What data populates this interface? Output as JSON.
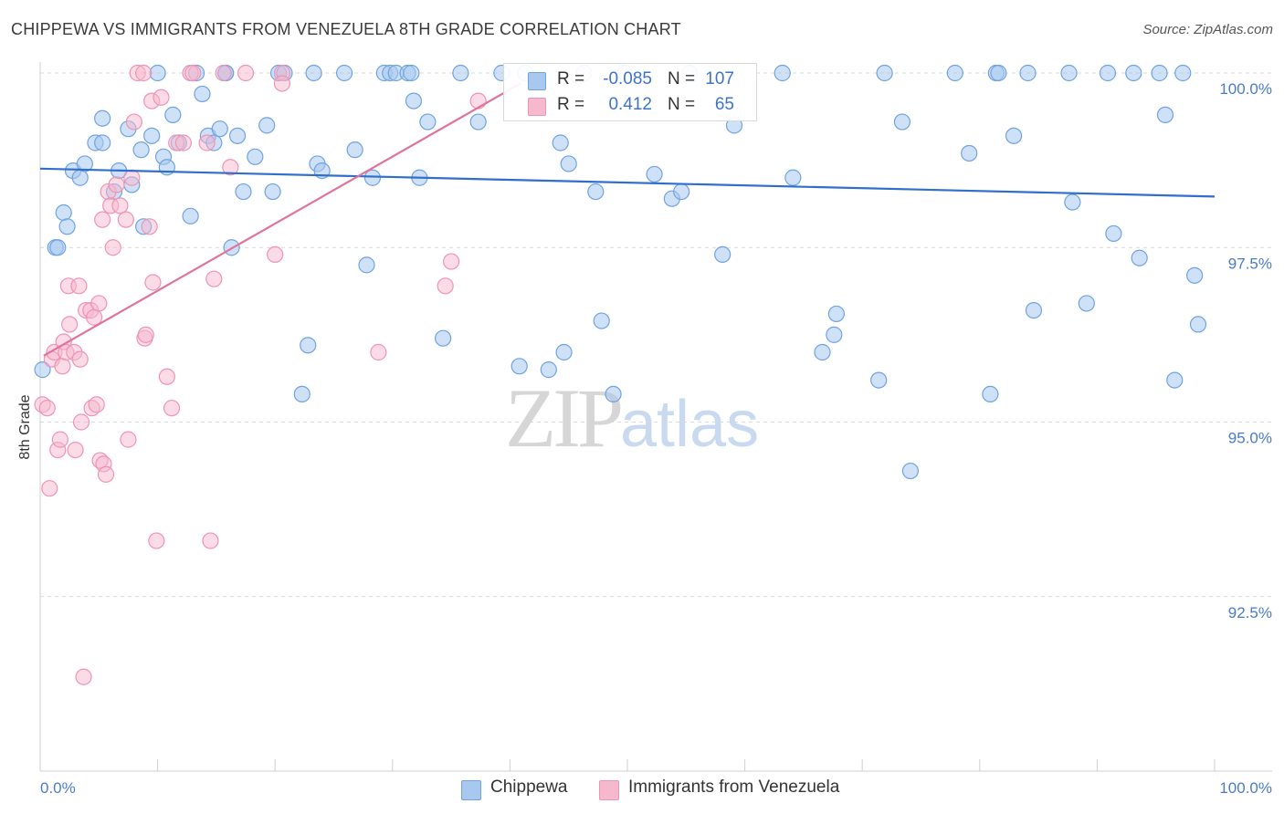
{
  "title": "CHIPPEWA VS IMMIGRANTS FROM VENEZUELA 8TH GRADE CORRELATION CHART",
  "source": "Source: ZipAtlas.com",
  "watermark": {
    "zip": "ZIP",
    "atlas": "atlas"
  },
  "colors": {
    "blue": "#6fa3e0",
    "blue_fill": "#a8c8f0",
    "blue_line": "#2f6fcb",
    "pink": "#ef94b3",
    "pink_fill": "#f6b8cd",
    "pink_line": "#e0739c",
    "tick": "#4a7bc8",
    "grid": "#d9d9d9"
  },
  "legend": {
    "rows": [
      {
        "r_label": "R =",
        "r_value": "-0.085",
        "n_label": "N =",
        "n_value": "107"
      },
      {
        "r_label": "R =",
        "r_value": "0.412",
        "n_label": "N =",
        "n_value": "65"
      }
    ]
  },
  "bottom_legend": {
    "series1": "Chippewa",
    "series2": "Immigrants from Venezuela"
  },
  "chart_data": {
    "type": "scatter",
    "title": "CHIPPEWA VS IMMIGRANTS FROM VENEZUELA 8TH GRADE CORRELATION CHART",
    "xlabel": "",
    "ylabel": "8th Grade",
    "xlim": [
      0,
      100
    ],
    "ylim": [
      90.2,
      100.5
    ],
    "x_tick_labels": [
      "0.0%",
      "100.0%"
    ],
    "y_ticks": [
      92.5,
      95.0,
      97.5,
      100.0
    ],
    "y_tick_labels": [
      "92.5%",
      "95.0%",
      "97.5%",
      "100.0%"
    ],
    "grid": true,
    "series": [
      {
        "name": "Chippewa",
        "r": -0.085,
        "n": 107,
        "trend": {
          "x": [
            0,
            100
          ],
          "y": [
            98.63,
            98.23
          ]
        },
        "points": [
          [
            0.2,
            95.75
          ],
          [
            1.3,
            97.5
          ],
          [
            1.5,
            97.5
          ],
          [
            2.0,
            98.0
          ],
          [
            2.3,
            97.8
          ],
          [
            2.8,
            98.6
          ],
          [
            3.4,
            98.5
          ],
          [
            3.8,
            98.7
          ],
          [
            4.7,
            99.0
          ],
          [
            5.3,
            99.0
          ],
          [
            5.3,
            99.35
          ],
          [
            6.3,
            98.3
          ],
          [
            6.7,
            98.6
          ],
          [
            7.5,
            99.2
          ],
          [
            7.8,
            98.4
          ],
          [
            8.6,
            98.9
          ],
          [
            8.8,
            97.8
          ],
          [
            9.5,
            99.1
          ],
          [
            10.0,
            100.0
          ],
          [
            10.5,
            98.8
          ],
          [
            10.8,
            98.65
          ],
          [
            11.3,
            99.4
          ],
          [
            11.8,
            99.0
          ],
          [
            12.8,
            97.95
          ],
          [
            13.3,
            100.0
          ],
          [
            13.8,
            99.7
          ],
          [
            14.3,
            99.1
          ],
          [
            14.8,
            99.0
          ],
          [
            15.3,
            99.2
          ],
          [
            15.8,
            100.0
          ],
          [
            15.8,
            100.0
          ],
          [
            16.3,
            97.5
          ],
          [
            16.8,
            99.1
          ],
          [
            17.3,
            98.3
          ],
          [
            18.3,
            98.8
          ],
          [
            19.3,
            99.25
          ],
          [
            19.8,
            98.3
          ],
          [
            20.3,
            100.0
          ],
          [
            20.8,
            100.0
          ],
          [
            22.3,
            95.4
          ],
          [
            22.8,
            96.1
          ],
          [
            23.3,
            100.0
          ],
          [
            23.6,
            98.7
          ],
          [
            24.0,
            98.6
          ],
          [
            25.9,
            100.0
          ],
          [
            26.8,
            98.9
          ],
          [
            27.8,
            97.25
          ],
          [
            28.3,
            98.5
          ],
          [
            29.3,
            100.0
          ],
          [
            29.8,
            100.0
          ],
          [
            30.3,
            100.0
          ],
          [
            31.3,
            100.0
          ],
          [
            31.6,
            100.0
          ],
          [
            31.8,
            99.6
          ],
          [
            32.3,
            98.5
          ],
          [
            33.0,
            99.3
          ],
          [
            34.3,
            96.2
          ],
          [
            35.8,
            100.0
          ],
          [
            37.3,
            99.3
          ],
          [
            39.3,
            100.0
          ],
          [
            40.8,
            95.8
          ],
          [
            41.3,
            100.0
          ],
          [
            43.3,
            95.75
          ],
          [
            44.3,
            99.0
          ],
          [
            44.6,
            96.0
          ],
          [
            45.0,
            98.7
          ],
          [
            46.3,
            100.0
          ],
          [
            47.3,
            98.3
          ],
          [
            47.8,
            96.45
          ],
          [
            48.8,
            95.4
          ],
          [
            49.8,
            100.0
          ],
          [
            52.3,
            98.55
          ],
          [
            53.8,
            98.2
          ],
          [
            54.6,
            98.3
          ],
          [
            55.3,
            100.0
          ],
          [
            58.1,
            97.4
          ],
          [
            59.1,
            99.25
          ],
          [
            63.2,
            100.0
          ],
          [
            64.1,
            98.5
          ],
          [
            66.6,
            96.0
          ],
          [
            67.6,
            96.25
          ],
          [
            67.8,
            96.55
          ],
          [
            71.4,
            95.6
          ],
          [
            71.9,
            100.0
          ],
          [
            73.4,
            99.3
          ],
          [
            74.1,
            94.3
          ],
          [
            77.9,
            100.0
          ],
          [
            79.1,
            98.85
          ],
          [
            80.9,
            95.4
          ],
          [
            81.4,
            100.0
          ],
          [
            81.6,
            100.0
          ],
          [
            82.9,
            99.1
          ],
          [
            84.1,
            100.0
          ],
          [
            84.6,
            96.6
          ],
          [
            87.6,
            100.0
          ],
          [
            87.9,
            98.15
          ],
          [
            89.1,
            96.7
          ],
          [
            90.9,
            100.0
          ],
          [
            91.4,
            97.7
          ],
          [
            93.1,
            100.0
          ],
          [
            93.6,
            97.35
          ],
          [
            95.3,
            100.0
          ],
          [
            95.8,
            99.4
          ],
          [
            96.6,
            95.6
          ],
          [
            97.3,
            100.0
          ],
          [
            98.3,
            97.1
          ],
          [
            98.6,
            96.4
          ]
        ]
      },
      {
        "name": "Immigrants from Venezuela",
        "r": 0.412,
        "n": 65,
        "trend": {
          "x": [
            0.3,
            40.9
          ],
          "y": [
            95.95,
            99.85
          ]
        },
        "points": [
          [
            0.2,
            95.25
          ],
          [
            0.6,
            95.2
          ],
          [
            0.8,
            94.05
          ],
          [
            1.0,
            95.9
          ],
          [
            1.2,
            96.0
          ],
          [
            1.5,
            94.6
          ],
          [
            1.7,
            94.75
          ],
          [
            1.9,
            95.8
          ],
          [
            2.0,
            96.15
          ],
          [
            2.2,
            96.0
          ],
          [
            2.4,
            96.95
          ],
          [
            2.5,
            96.4
          ],
          [
            2.9,
            96.0
          ],
          [
            3.0,
            94.6
          ],
          [
            3.3,
            96.95
          ],
          [
            3.4,
            95.9
          ],
          [
            3.5,
            95.0
          ],
          [
            3.7,
            91.35
          ],
          [
            3.9,
            96.6
          ],
          [
            4.3,
            96.6
          ],
          [
            4.4,
            95.2
          ],
          [
            4.6,
            96.5
          ],
          [
            4.8,
            95.25
          ],
          [
            5.0,
            96.7
          ],
          [
            5.1,
            94.45
          ],
          [
            5.3,
            97.9
          ],
          [
            5.4,
            94.4
          ],
          [
            5.6,
            94.25
          ],
          [
            5.8,
            98.3
          ],
          [
            6.0,
            98.1
          ],
          [
            6.2,
            97.5
          ],
          [
            6.5,
            98.4
          ],
          [
            6.8,
            98.1
          ],
          [
            7.3,
            97.9
          ],
          [
            7.5,
            94.75
          ],
          [
            7.8,
            98.5
          ],
          [
            8.0,
            99.3
          ],
          [
            8.3,
            100.0
          ],
          [
            8.9,
            96.2
          ],
          [
            9.0,
            96.25
          ],
          [
            9.3,
            97.8
          ],
          [
            9.5,
            99.6
          ],
          [
            9.6,
            97.0
          ],
          [
            9.9,
            93.3
          ],
          [
            10.3,
            99.65
          ],
          [
            10.8,
            95.65
          ],
          [
            11.2,
            95.2
          ],
          [
            11.6,
            99.0
          ],
          [
            12.2,
            99.0
          ],
          [
            12.8,
            100.0
          ],
          [
            14.2,
            99.0
          ],
          [
            14.5,
            93.3
          ],
          [
            14.8,
            97.05
          ],
          [
            16.2,
            98.65
          ],
          [
            17.5,
            100.0
          ],
          [
            20.0,
            97.4
          ],
          [
            20.6,
            100.0
          ],
          [
            20.6,
            99.85
          ],
          [
            28.8,
            96.0
          ],
          [
            34.5,
            96.95
          ],
          [
            35.0,
            97.3
          ],
          [
            37.3,
            99.6
          ],
          [
            8.8,
            100.0
          ],
          [
            15.6,
            100.0
          ],
          [
            13.0,
            100.0
          ]
        ]
      }
    ]
  }
}
